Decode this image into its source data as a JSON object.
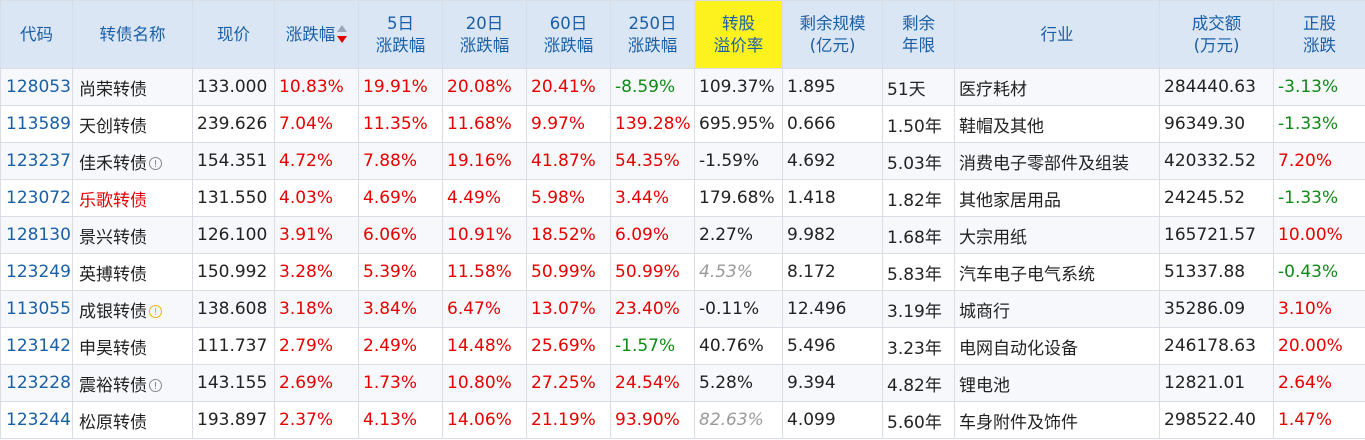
{
  "headers": {
    "code": "代码",
    "name": "转债名称",
    "price": "现价",
    "change": "涨跌幅",
    "change_5d": [
      "5日",
      "涨跌幅"
    ],
    "change_20d": [
      "20日",
      "涨跌幅"
    ],
    "change_60d": [
      "60日",
      "涨跌幅"
    ],
    "change_250d": [
      "250日",
      "涨跌幅"
    ],
    "premium": [
      "转股",
      "溢价率"
    ],
    "remaining_scale": [
      "剩余规模",
      "(亿元)"
    ],
    "remaining_term": [
      "剩余",
      "年限"
    ],
    "industry": "行业",
    "turnover": [
      "成交额",
      "(万元)"
    ],
    "stock_change": [
      "正股",
      "涨跌"
    ]
  },
  "colors": {
    "header_bg": "#dbe6f5",
    "header_highlight": "#fdf21e",
    "header_text": "#1a5fa6",
    "up": "#e60000",
    "down": "#0e8a16"
  },
  "rows": [
    {
      "code": "128053",
      "name": "尚荣转债",
      "price": "133.000",
      "change": "10.83%",
      "change_5d": "19.91%",
      "change_20d": "20.08%",
      "change_60d": "20.41%",
      "change_250d": "-8.59%",
      "premium": "109.37%",
      "scale": "1.895",
      "term": "51天",
      "industry": "医疗耗材",
      "turnover": "284440.63",
      "stock_change": "-3.13%"
    },
    {
      "code": "113589",
      "name": "天创转债",
      "price": "239.626",
      "change": "7.04%",
      "change_5d": "11.35%",
      "change_20d": "11.68%",
      "change_60d": "9.97%",
      "change_250d": "139.28%",
      "premium": "695.95%",
      "scale": "0.666",
      "term": "1.50年",
      "industry": "鞋帽及其他",
      "turnover": "96349.30",
      "stock_change": "-1.33%"
    },
    {
      "code": "123237",
      "name": "佳禾转债",
      "flag": "gray",
      "price": "154.351",
      "change": "4.72%",
      "change_5d": "7.88%",
      "change_20d": "19.16%",
      "change_60d": "41.87%",
      "change_250d": "54.35%",
      "premium": "-1.59%",
      "scale": "4.692",
      "term": "5.03年",
      "industry": "消费电子零部件及组装",
      "turnover": "420332.52",
      "stock_change": "7.20%"
    },
    {
      "code": "123072",
      "name": "乐歌转债",
      "name_red": true,
      "price": "131.550",
      "change": "4.03%",
      "change_5d": "4.69%",
      "change_20d": "4.49%",
      "change_60d": "5.98%",
      "change_250d": "3.44%",
      "premium": "179.68%",
      "scale": "1.418",
      "term": "1.82年",
      "industry": "其他家居用品",
      "turnover": "24245.52",
      "stock_change": "-1.33%"
    },
    {
      "code": "128130",
      "name": "景兴转债",
      "price": "126.100",
      "change": "3.91%",
      "change_5d": "6.06%",
      "change_20d": "10.91%",
      "change_60d": "18.52%",
      "change_250d": "6.09%",
      "premium": "2.27%",
      "scale": "9.982",
      "term": "1.68年",
      "industry": "大宗用纸",
      "turnover": "165721.57",
      "stock_change": "10.00%"
    },
    {
      "code": "123249",
      "name": "英搏转债",
      "price": "150.992",
      "change": "3.28%",
      "change_5d": "5.39%",
      "change_20d": "11.58%",
      "change_60d": "50.99%",
      "change_250d": "50.99%",
      "premium": "4.53%",
      "premium_muted": true,
      "scale": "8.172",
      "term": "5.83年",
      "industry": "汽车电子电气系统",
      "turnover": "51337.88",
      "stock_change": "-0.43%"
    },
    {
      "code": "113055",
      "name": "成银转债",
      "flag": "yellow",
      "price": "138.608",
      "change": "3.18%",
      "change_5d": "3.84%",
      "change_20d": "6.47%",
      "change_60d": "13.07%",
      "change_250d": "23.40%",
      "premium": "-0.11%",
      "scale": "12.496",
      "term": "3.19年",
      "industry": "城商行",
      "turnover": "35286.09",
      "stock_change": "3.10%"
    },
    {
      "code": "123142",
      "name": "申昊转债",
      "price": "111.737",
      "change": "2.79%",
      "change_5d": "2.49%",
      "change_20d": "14.48%",
      "change_60d": "25.69%",
      "change_250d": "-1.57%",
      "premium": "40.76%",
      "scale": "5.496",
      "term": "3.23年",
      "industry": "电网自动化设备",
      "turnover": "246178.63",
      "stock_change": "20.00%"
    },
    {
      "code": "123228",
      "name": "震裕转债",
      "flag": "gray",
      "price": "143.155",
      "change": "2.69%",
      "change_5d": "1.73%",
      "change_20d": "10.80%",
      "change_60d": "27.25%",
      "change_250d": "24.54%",
      "premium": "5.28%",
      "scale": "9.394",
      "term": "4.82年",
      "industry": "锂电池",
      "turnover": "12821.01",
      "stock_change": "2.64%"
    },
    {
      "code": "123244",
      "name": "松原转债",
      "price": "193.897",
      "change": "2.37%",
      "change_5d": "4.13%",
      "change_20d": "14.06%",
      "change_60d": "21.19%",
      "change_250d": "93.90%",
      "premium": "82.63%",
      "premium_muted": true,
      "scale": "4.099",
      "term": "5.60年",
      "industry": "车身附件及饰件",
      "turnover": "298522.40",
      "stock_change": "1.47%"
    }
  ]
}
